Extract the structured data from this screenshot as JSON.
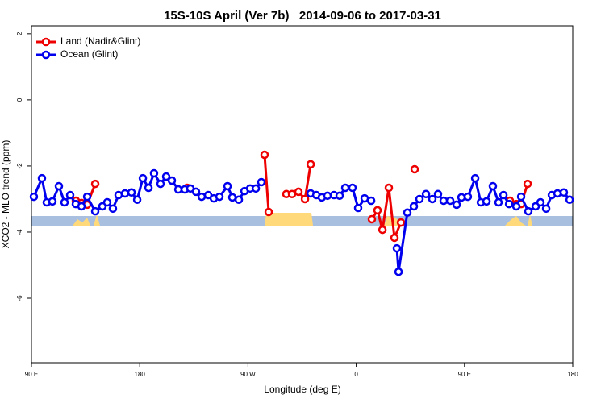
{
  "chart_data": {
    "type": "line",
    "title": "15S-10S April (Ver 7b)   2014-09-06 to 2017-03-31",
    "x_label": "Longitude (deg E)",
    "y_label": "XCO2 - MLO trend (ppm)",
    "xlim": [
      90,
      540
    ],
    "ylim": [
      -7.95,
      2.24
    ],
    "xticks": [
      {
        "value": 90,
        "label": "90 E"
      },
      180,
      {
        "value": 270,
        "label": "90 W"
      },
      {
        "value": 360,
        "label": "0"
      },
      {
        "value": 450,
        "label": "90 E"
      },
      {
        "value": 540,
        "label": "180"
      }
    ],
    "yticks": [
      2,
      0,
      -2,
      -4,
      -6
    ],
    "legend": "topleft",
    "series": [
      {
        "name": "Land (Nadir&Glint)",
        "color": "#ee0000",
        "x": [
          126.9,
          131.6,
          136.3,
          143.0,
          null,
          219.4,
          null,
          283.8,
          287.2,
          null,
          301.9,
          306.6,
          312.0,
          317.4,
          322.1,
          null,
          373.0,
          377.7,
          381.8,
          387.1,
          391.8,
          397.2,
          null,
          408.6,
          null,
          487.7,
          493.1,
          497.1,
          502.5
        ],
        "values": [
          -3.05,
          -3.12,
          -3.17,
          -2.54,
          null,
          -2.66,
          null,
          -1.66,
          -3.39,
          null,
          -2.85,
          -2.85,
          -2.78,
          -3.0,
          -1.95,
          null,
          -3.61,
          -3.34,
          -3.93,
          -2.66,
          -4.17,
          -3.71,
          null,
          -2.1,
          null,
          -3.05,
          -3.15,
          -3.15,
          -2.54
        ]
      },
      {
        "name": "Ocean (Glint)",
        "color": "#0000ee",
        "x": [
          92.0,
          98.7,
          102.7,
          107.4,
          112.8,
          117.5,
          122.2,
          126.9,
          131.6,
          136.3,
          143.0,
          149.0,
          153.0,
          157.7,
          162.4,
          167.8,
          173.2,
          177.9,
          182.6,
          187.3,
          191.9,
          197.3,
          202.0,
          206.7,
          212.1,
          217.4,
          222.1,
          226.8,
          231.5,
          236.9,
          241.6,
          246.3,
          253.0,
          257.0,
          262.4,
          267.1,
          271.8,
          276.5,
          281.1,
          null,
          322.1,
          326.8,
          331.4,
          336.1,
          341.5,
          346.2,
          350.9,
          356.9,
          361.6,
          367.0,
          372.4,
          null,
          393.8,
          395.2,
          402.5,
          407.9,
          412.6,
          418.0,
          423.3,
          428.0,
          432.7,
          438.1,
          443.5,
          447.5,
          452.8,
          458.9,
          463.6,
          468.3,
          473.6,
          478.3,
          482.4,
          487.1,
          493.1,
          497.1,
          503.1,
          509.2,
          513.2,
          517.9,
          522.6,
          527.3,
          532.6,
          537.4
        ],
        "values": [
          -2.93,
          -2.37,
          -3.1,
          -3.07,
          -2.61,
          -3.1,
          -2.88,
          -3.15,
          -3.22,
          -2.93,
          -3.37,
          -3.22,
          -3.1,
          -3.29,
          -2.88,
          -2.83,
          -2.8,
          -3.02,
          -2.37,
          -2.66,
          -2.22,
          -2.54,
          -2.32,
          -2.44,
          -2.71,
          -2.71,
          -2.68,
          -2.78,
          -2.93,
          -2.88,
          -2.98,
          -2.93,
          -2.61,
          -2.95,
          -3.02,
          -2.76,
          -2.68,
          -2.68,
          -2.49,
          null,
          -2.83,
          -2.88,
          -2.95,
          -2.9,
          -2.88,
          -2.9,
          -2.66,
          -2.66,
          -3.27,
          -2.98,
          -3.05,
          null,
          -4.49,
          -5.2,
          -3.41,
          -3.22,
          -3.0,
          -2.85,
          -3.0,
          -2.85,
          -3.05,
          -3.05,
          -3.17,
          -2.95,
          -2.93,
          -2.37,
          -3.1,
          -3.07,
          -2.61,
          -3.1,
          -2.88,
          -3.15,
          -3.22,
          -2.93,
          -3.37,
          -3.22,
          -3.1,
          -3.29,
          -2.88,
          -2.83,
          -2.8,
          -3.02
        ]
      }
    ]
  }
}
